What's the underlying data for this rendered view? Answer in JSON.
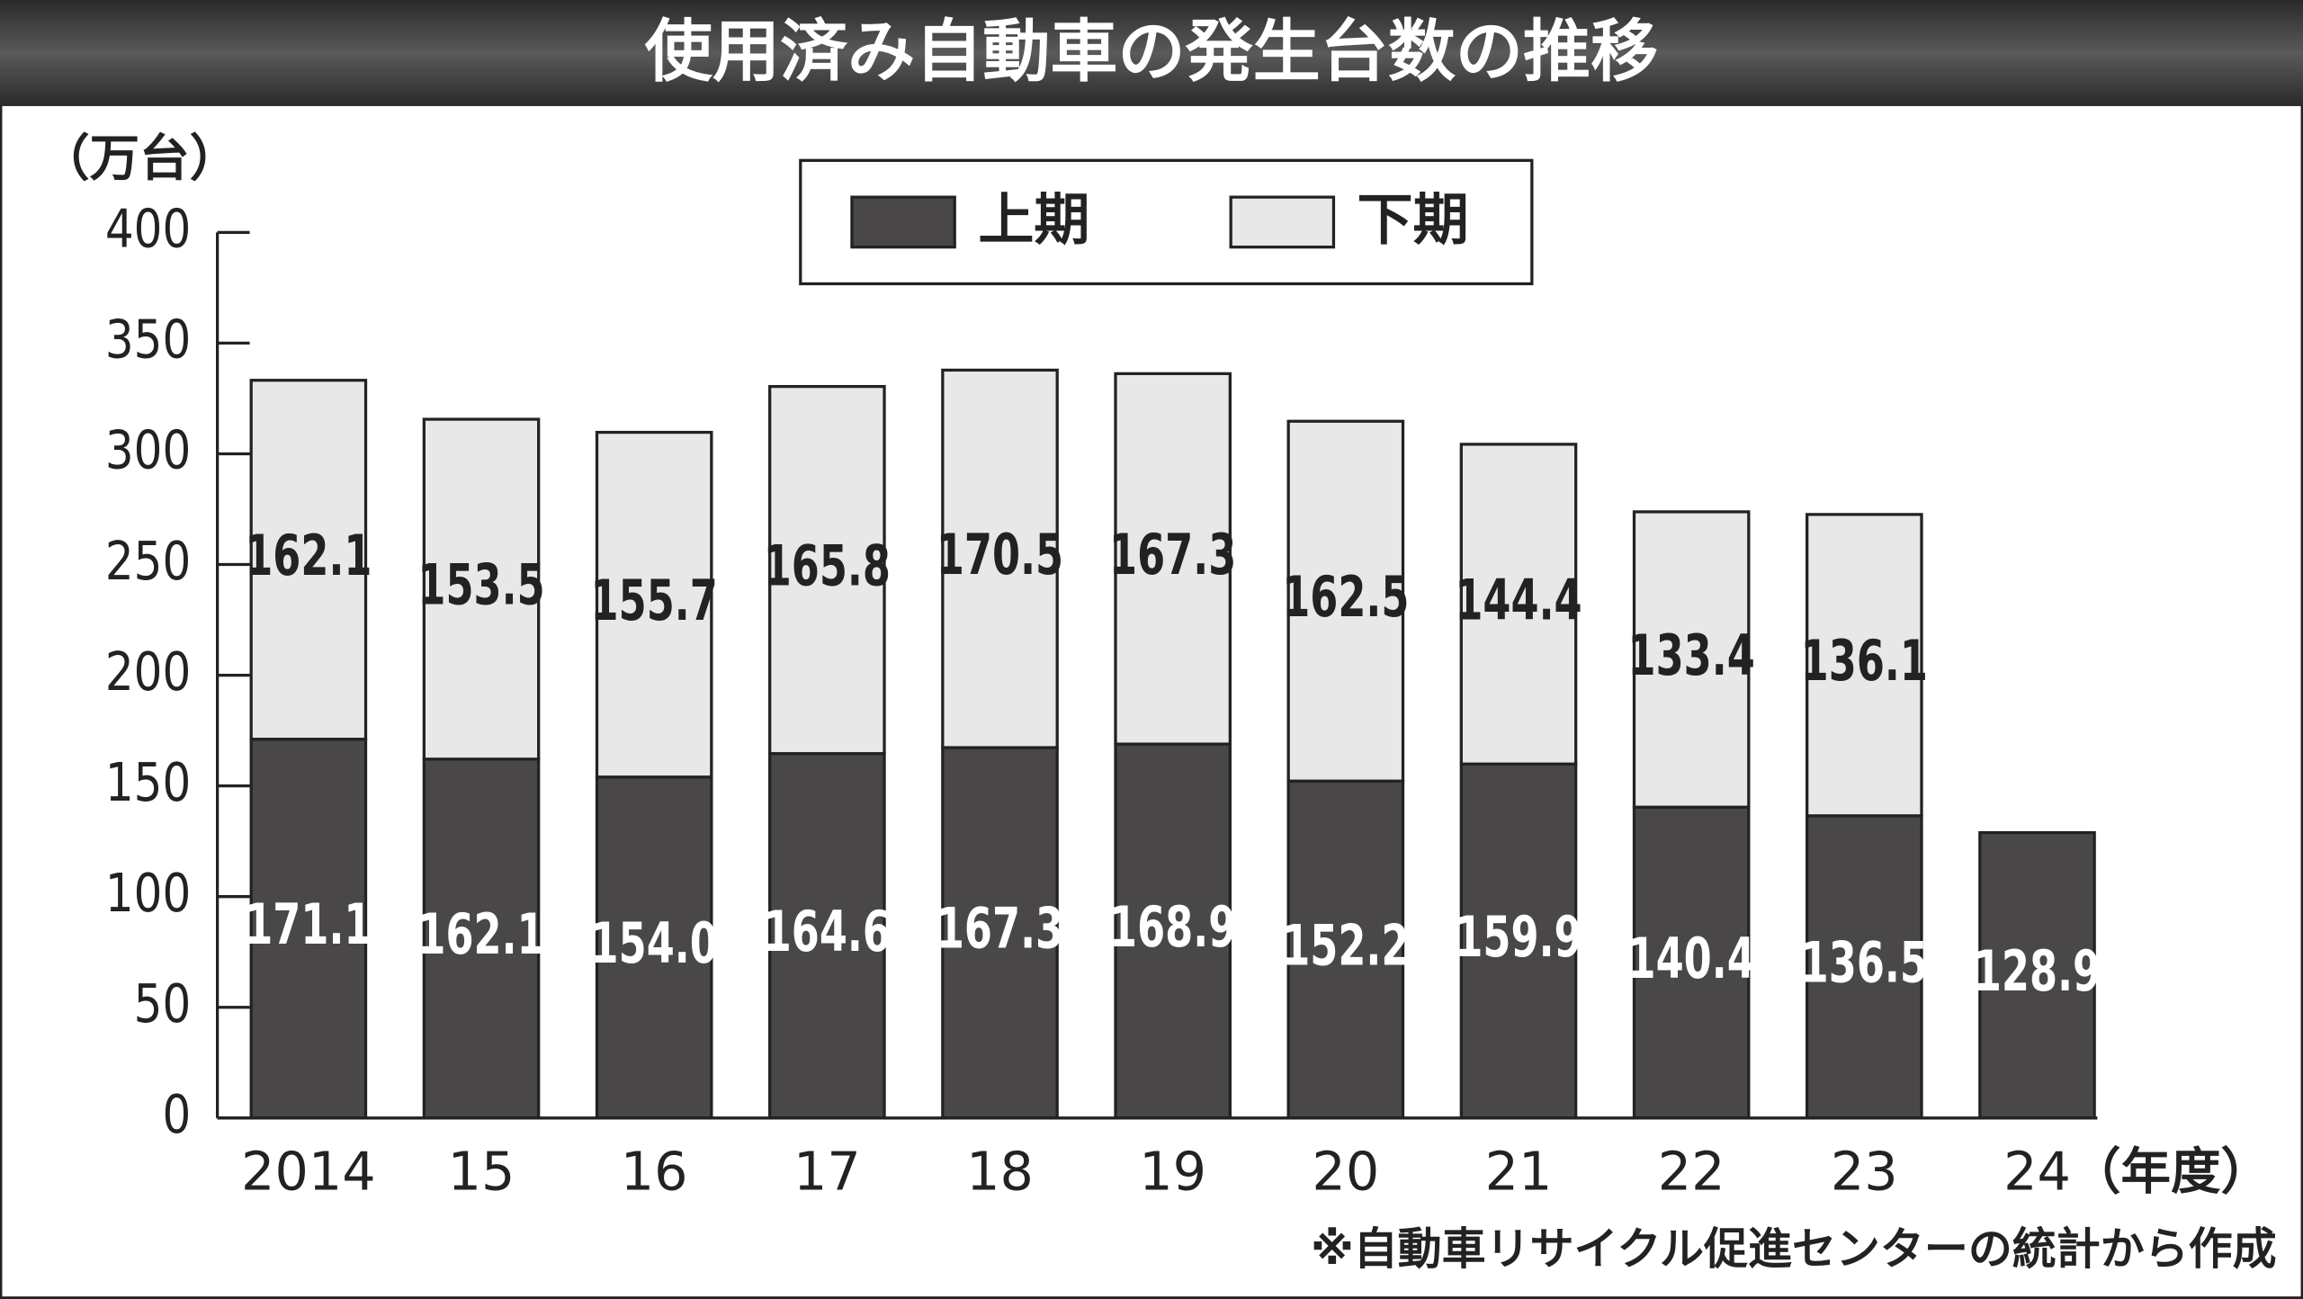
{
  "chart_data": {
    "type": "stacked-bar",
    "title": "使用済み自動車の発生台数の推移",
    "y_label": "（万台）",
    "x_label": "（年度）",
    "note": "※自動車リサイクル促進センターの統計から作成",
    "categories": [
      "2014",
      "15",
      "16",
      "17",
      "18",
      "19",
      "20",
      "21",
      "22",
      "23",
      "24"
    ],
    "series": [
      {
        "name": "上期",
        "color": "#4a4748",
        "values": [
          171.1,
          162.1,
          154.0,
          164.6,
          167.3,
          168.9,
          152.2,
          159.9,
          140.4,
          136.5,
          128.9
        ],
        "value_labels": [
          "171.1",
          "162.1",
          "154.0",
          "164.6",
          "167.3",
          "168.9",
          "152.2",
          "159.9",
          "140.4",
          "136.5",
          "128.9"
        ]
      },
      {
        "name": "下期",
        "color": "#e8e8e8",
        "values": [
          162.1,
          153.5,
          155.7,
          165.8,
          170.5,
          167.3,
          162.5,
          144.4,
          133.4,
          136.1,
          null
        ],
        "value_labels": [
          "162.1",
          "153.5",
          "155.7",
          "165.8",
          "170.5",
          "167.3",
          "162.5",
          "144.4",
          "133.4",
          "136.1",
          null
        ]
      }
    ],
    "ylim": [
      0,
      400
    ],
    "yticks": [
      0,
      50,
      100,
      150,
      200,
      250,
      300,
      350,
      400
    ]
  }
}
